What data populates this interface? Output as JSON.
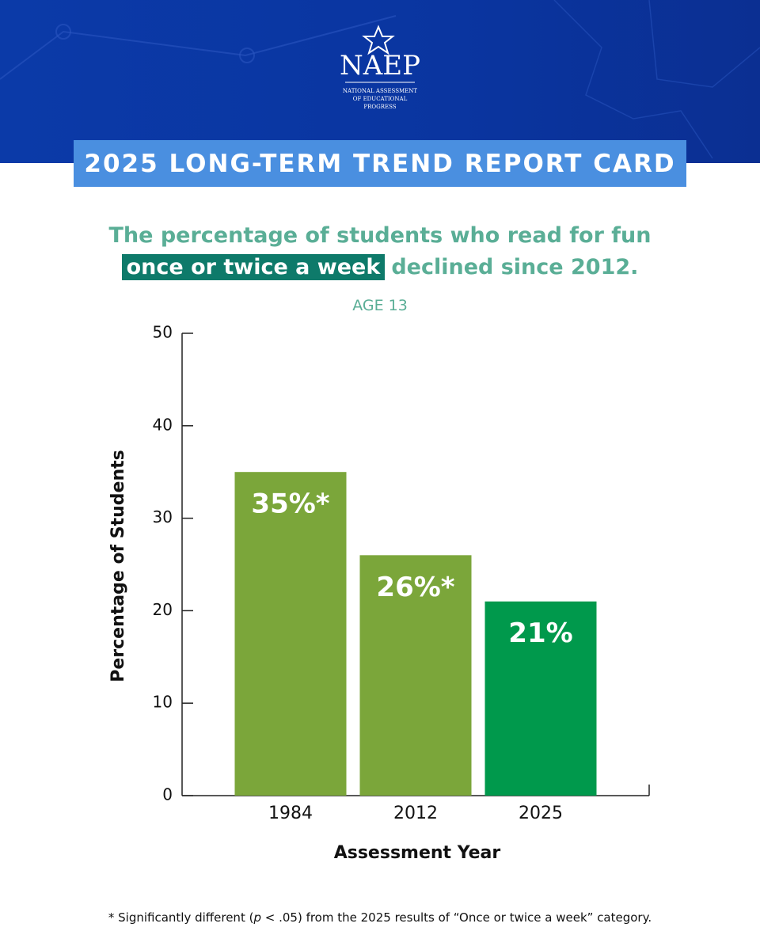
{
  "header": {
    "logo": "NAEP",
    "logo_lines": [
      "NATIONAL ASSESSMENT",
      "OF EDUCATIONAL",
      "PROGRESS"
    ],
    "banner": "2025 LONG-TERM TREND REPORT CARD"
  },
  "chart_data": {
    "type": "bar",
    "title": "The percentage of students who read for fun",
    "title_highlight": "once or twice a week",
    "title_end": "declined since 2012.",
    "subtitle": "AGE 13",
    "x_label": "Assessment Year",
    "y_label": "Percentage of Students",
    "categories": [
      "1984",
      "2012",
      "2025"
    ],
    "values": [
      35,
      26,
      21
    ],
    "value_labels": [
      "35%*",
      "26%*",
      "21%"
    ],
    "colors": [
      "#7ba63a",
      "#7ba63a",
      "#00994c"
    ],
    "ylim": [
      0,
      50
    ],
    "yticks": [
      0,
      10,
      20,
      30,
      40,
      50
    ]
  },
  "footnote": {
    "start": "* Significantly different (",
    "italic": "p",
    "end": " < .05) from the 2025 results of “Once or twice a week” category."
  }
}
